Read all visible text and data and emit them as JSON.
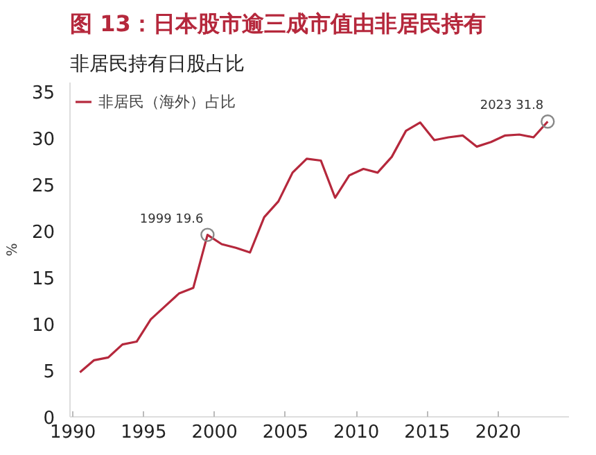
{
  "chart_data": {
    "type": "line",
    "title": "图 13：日本股市逾三成市值由非居民持有",
    "subtitle": "非居民持有日股占比",
    "ylabel": "%",
    "x": [
      1990.5,
      1991.5,
      1992.5,
      1993.5,
      1994.5,
      1995.5,
      1996.5,
      1997.5,
      1998.5,
      1999.5,
      2000.5,
      2001.5,
      2002.5,
      2003.5,
      2004.5,
      2005.5,
      2006.5,
      2007.5,
      2008.5,
      2009.5,
      2010.5,
      2011.5,
      2012.5,
      2013.5,
      2014.5,
      2015.5,
      2016.5,
      2017.5,
      2018.5,
      2019.5,
      2020.5,
      2021.5,
      2022.5,
      2023.5
    ],
    "series": [
      {
        "name": "非居民（海外）占比",
        "color": "#b5283c",
        "values": [
          4.8,
          6.1,
          6.4,
          7.8,
          8.1,
          10.5,
          11.9,
          13.3,
          13.9,
          19.6,
          18.6,
          18.2,
          17.7,
          21.5,
          23.2,
          26.3,
          27.8,
          27.6,
          23.6,
          26.0,
          26.7,
          26.3,
          28.0,
          30.8,
          31.7,
          29.8,
          30.1,
          30.3,
          29.1,
          29.6,
          30.3,
          30.4,
          30.1,
          31.8
        ]
      }
    ],
    "annotations": [
      {
        "text": "1999 19.6",
        "x": 1999.5,
        "y": 19.6
      },
      {
        "text": "2023 31.8",
        "x": 2023.5,
        "y": 31.8
      }
    ],
    "xlim": [
      1989.8,
      2025
    ],
    "xticks": [
      1990,
      1995,
      2000,
      2005,
      2010,
      2015,
      2020
    ],
    "ylim": [
      0,
      36
    ],
    "yticks": [
      0,
      5,
      10,
      15,
      20,
      25,
      30,
      35
    ],
    "grid": false,
    "legend": "top"
  }
}
